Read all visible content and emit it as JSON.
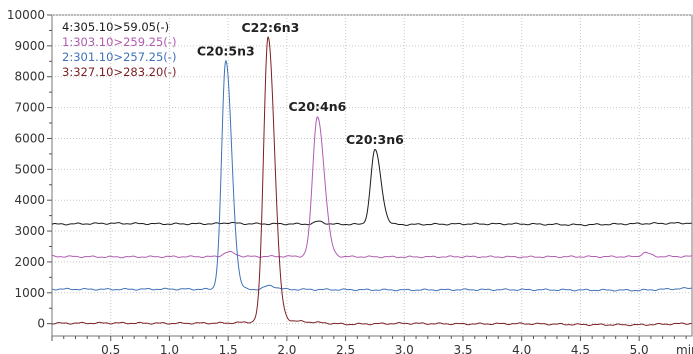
{
  "chart_data": {
    "type": "line",
    "title": "",
    "xlabel": "min",
    "ylabel": "",
    "xlim": [
      0.0,
      5.45
    ],
    "ylim": [
      -400,
      10000
    ],
    "x_ticks": [
      0.5,
      1.0,
      1.5,
      2.0,
      2.5,
      3.0,
      3.5,
      4.0,
      4.5,
      5.0
    ],
    "x_tick_labels": [
      "0.5",
      "1.0",
      "1.5",
      "2.0",
      "2.5",
      "3.0",
      "3.5",
      "4.0",
      "4.5",
      "5.0"
    ],
    "y_ticks": [
      0,
      1000,
      2000,
      3000,
      4000,
      5000,
      6000,
      7000,
      8000,
      9000,
      10000
    ],
    "y_tick_labels": [
      "0",
      "1000",
      "2000",
      "3000",
      "4000",
      "5000",
      "6000",
      "7000",
      "8000",
      "9000",
      "10000"
    ],
    "grid": true,
    "legend_position": "top-left",
    "series": [
      {
        "name": "4:305.10>59.05(-)",
        "color": "#1a1a1a",
        "baseline": [
          [
            0.0,
            3220
          ],
          [
            0.5,
            3250
          ],
          [
            1.0,
            3230
          ],
          [
            1.5,
            3240
          ],
          [
            2.0,
            3230
          ],
          [
            2.5,
            3220
          ],
          [
            3.0,
            3210
          ],
          [
            3.5,
            3230
          ],
          [
            4.0,
            3230
          ],
          [
            4.5,
            3200
          ],
          [
            5.0,
            3240
          ],
          [
            5.45,
            3260
          ]
        ],
        "peaks": [
          [
            1.5,
            30,
            0.04
          ],
          [
            2.27,
            90,
            0.03
          ],
          [
            2.75,
            2420,
            0.035
          ]
        ]
      },
      {
        "name": "1:303.10>259.25(-)",
        "color": "#b05cb0",
        "baseline": [
          [
            0.0,
            2180
          ],
          [
            0.5,
            2160
          ],
          [
            1.0,
            2170
          ],
          [
            1.5,
            2170
          ],
          [
            2.0,
            2180
          ],
          [
            2.5,
            2170
          ],
          [
            3.0,
            2160
          ],
          [
            3.5,
            2170
          ],
          [
            4.0,
            2160
          ],
          [
            4.5,
            2170
          ],
          [
            5.0,
            2170
          ],
          [
            5.45,
            2180
          ]
        ],
        "peaks": [
          [
            1.5,
            150,
            0.04
          ],
          [
            2.26,
            4540,
            0.04
          ],
          [
            5.05,
            130,
            0.03
          ]
        ]
      },
      {
        "name": "2:301.10>257.25(-)",
        "color": "#3f72b8",
        "baseline": [
          [
            0.0,
            1120
          ],
          [
            0.5,
            1110
          ],
          [
            1.0,
            1120
          ],
          [
            1.5,
            1110
          ],
          [
            2.0,
            1110
          ],
          [
            2.5,
            1100
          ],
          [
            3.0,
            1090
          ],
          [
            3.5,
            1100
          ],
          [
            4.0,
            1100
          ],
          [
            4.5,
            1090
          ],
          [
            5.0,
            1080
          ],
          [
            5.45,
            1150
          ]
        ],
        "peaks": [
          [
            1.48,
            7400,
            0.035
          ],
          [
            1.85,
            120,
            0.04
          ]
        ]
      },
      {
        "name": "3:327.10>283.20(-)",
        "color": "#7a1f24",
        "baseline": [
          [
            0.0,
            10
          ],
          [
            0.5,
            20
          ],
          [
            1.0,
            10
          ],
          [
            1.5,
            20
          ],
          [
            2.0,
            100
          ],
          [
            2.5,
            -20
          ],
          [
            3.0,
            10
          ],
          [
            3.5,
            -10
          ],
          [
            4.0,
            0
          ],
          [
            4.5,
            -30
          ],
          [
            5.0,
            -40
          ],
          [
            5.45,
            10
          ]
        ],
        "peaks": [
          [
            1.84,
            9220,
            0.038
          ]
        ]
      }
    ],
    "annotations": [
      {
        "text": "C20:5n3",
        "x": 1.48,
        "y": 8500
      },
      {
        "text": "C22:6n3",
        "x": 1.86,
        "y": 9250
      },
      {
        "text": "C20:4n6",
        "x": 2.26,
        "y": 6700
      },
      {
        "text": "C20:3n6",
        "x": 2.75,
        "y": 5620
      }
    ]
  }
}
